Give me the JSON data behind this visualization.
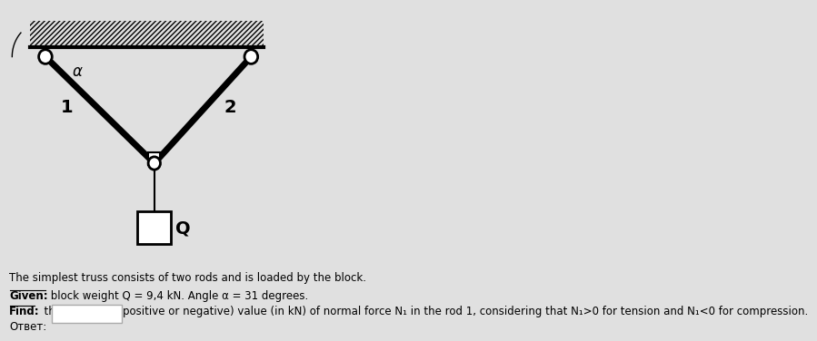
{
  "bg_color": "#e0e0e0",
  "diagram_bg": "#ffffff",
  "title_line": "The simplest truss consists of two rods and is loaded by the block.",
  "given_bold": "Given:",
  "given_rest": " block weight Q = 9,4 kN. Angle α = 31 degrees.",
  "find_bold": "Find:",
  "find_rest": "  the algebraic (positive or negative) value (in kN) of normal force N₁ in the rod 1, considering that N₁>0 for tension and N₁<0 for compression.",
  "answer_label": "Ответ:",
  "label_1": "1",
  "label_2": "2",
  "label_alpha": "α",
  "label_Q": "Q"
}
